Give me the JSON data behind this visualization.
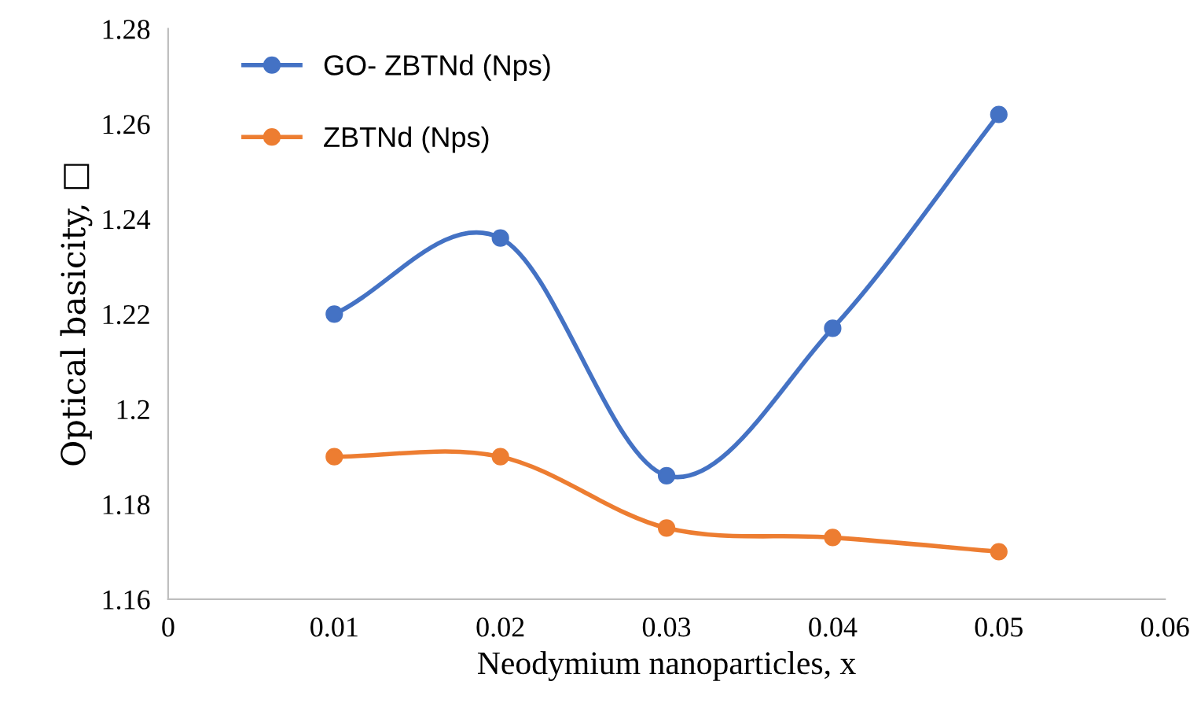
{
  "chart_data": {
    "type": "line",
    "xlabel": "Neodymium nanoparticles, x",
    "ylabel": "Optical basicity, □",
    "x": [
      0.01,
      0.02,
      0.03,
      0.04,
      0.05
    ],
    "series": [
      {
        "name": "GO- ZBTNd (Nps)",
        "color": "#4472c4",
        "values": [
          1.22,
          1.236,
          1.186,
          1.217,
          1.262
        ]
      },
      {
        "name": "ZBTNd (Nps)",
        "color": "#ed7d31",
        "values": [
          1.19,
          1.19,
          1.175,
          1.173,
          1.17
        ]
      }
    ],
    "xlim": [
      0,
      0.06
    ],
    "xticks": [
      0,
      0.01,
      0.02,
      0.03,
      0.04,
      0.05,
      0.06
    ],
    "ylim": [
      1.16,
      1.28
    ],
    "yticks": [
      1.16,
      1.18,
      {
        "value": 1.2,
        "label": "1.2"
      },
      1.22,
      1.24,
      1.26,
      1.28
    ],
    "grid": false,
    "legend": "top left",
    "marker": "circle",
    "line_style": "solid"
  }
}
